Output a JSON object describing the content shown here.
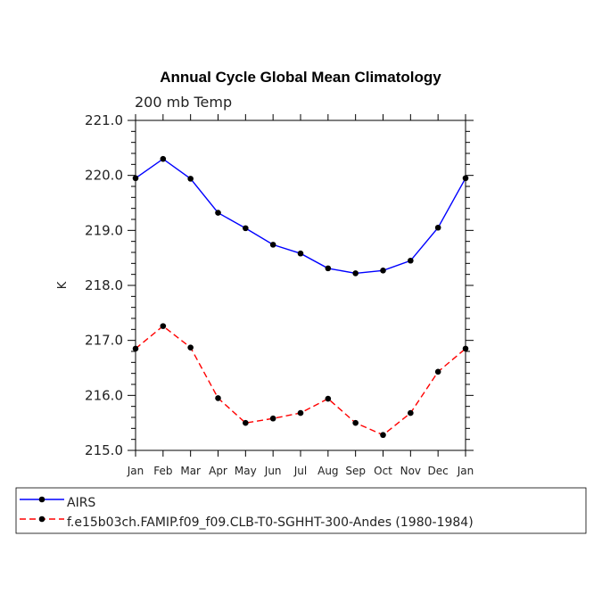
{
  "chart_data": {
    "type": "line",
    "title": "Annual Cycle Global Mean Climatology",
    "subtitle": "200 mb Temp",
    "xlabel": "",
    "ylabel": "K",
    "categories": [
      "Jan",
      "Feb",
      "Mar",
      "Apr",
      "May",
      "Jun",
      "Jul",
      "Aug",
      "Sep",
      "Oct",
      "Nov",
      "Dec",
      "Jan"
    ],
    "ylim": [
      215.0,
      221.0
    ],
    "yticks": [
      "215.0",
      "216.0",
      "217.0",
      "218.0",
      "219.0",
      "220.0",
      "221.0"
    ],
    "series": [
      {
        "name": "AIRS",
        "color": "#0000ff",
        "dash": "solid",
        "values": [
          219.95,
          220.3,
          219.94,
          219.32,
          219.04,
          218.74,
          218.58,
          218.31,
          218.22,
          218.27,
          218.45,
          219.05,
          219.95
        ]
      },
      {
        "name": "f.e15b03ch.FAMIP.f09_f09.CLB-T0-SGHHT-300-Andes (1980-1984)",
        "color": "#ff0000",
        "dash": "dashed",
        "values": [
          216.85,
          217.26,
          216.87,
          215.95,
          215.5,
          215.58,
          215.68,
          215.94,
          215.5,
          215.28,
          215.68,
          216.43,
          216.85
        ]
      }
    ],
    "marker_color": "#000000"
  }
}
